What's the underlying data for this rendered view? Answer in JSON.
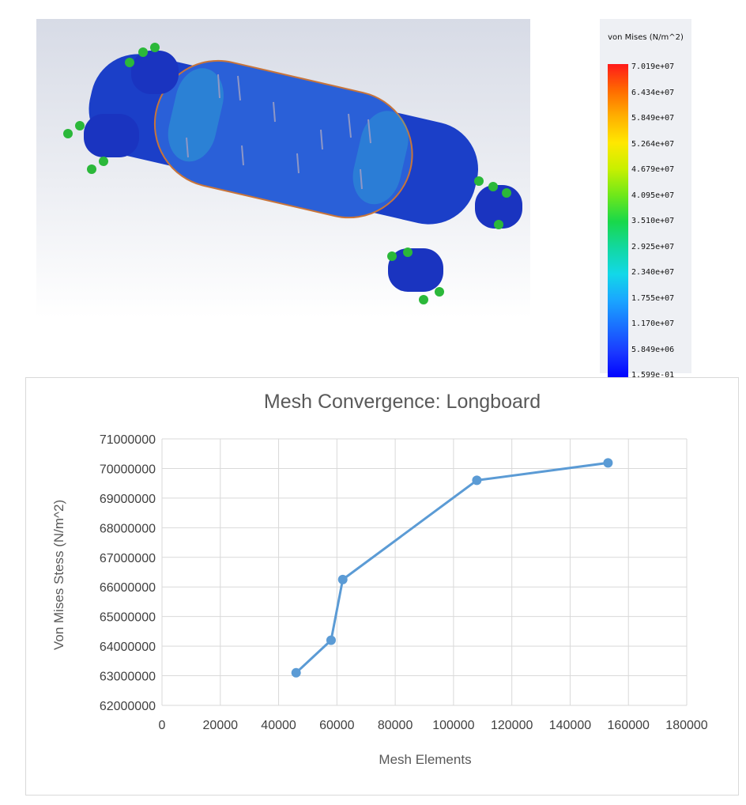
{
  "legend": {
    "title": "von Mises (N/m^2)",
    "labels": [
      "7.019e+07",
      "6.434e+07",
      "5.849e+07",
      "5.264e+07",
      "4.679e+07",
      "4.095e+07",
      "3.510e+07",
      "2.925e+07",
      "2.340e+07",
      "1.755e+07",
      "1.170e+07",
      "5.849e+06",
      "1.599e-01"
    ],
    "colors": [
      "#ff1a1a",
      "#ff6a00",
      "#ffb000",
      "#ffe800",
      "#c8f000",
      "#6ee81a",
      "#19d84a",
      "#12d8a0",
      "#12d8e8",
      "#1aa6ff",
      "#1a70ff",
      "#1a38ff",
      "#0000ff"
    ]
  },
  "chart_data": {
    "type": "line",
    "title": "Mesh Convergence: Longboard",
    "xlabel": "Mesh Elements",
    "ylabel": "Von Mises Stess (N/m^2)",
    "xlim": [
      0,
      180000
    ],
    "ylim": [
      62000000,
      71000000
    ],
    "x_ticks": [
      0,
      20000,
      40000,
      60000,
      80000,
      100000,
      120000,
      140000,
      160000,
      180000
    ],
    "y_ticks": [
      62000000,
      63000000,
      64000000,
      65000000,
      66000000,
      67000000,
      68000000,
      69000000,
      70000000,
      71000000
    ],
    "grid": true,
    "color": "#5b9bd5",
    "series": [
      {
        "x": [
          46000,
          58000,
          62000,
          108000,
          153000
        ],
        "y": [
          63100000,
          64200000,
          66250000,
          69600000,
          70190000
        ]
      }
    ]
  }
}
